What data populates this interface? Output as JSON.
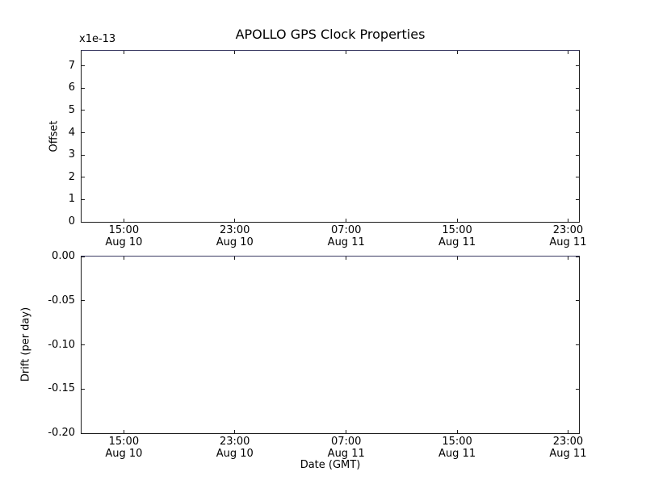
{
  "figure": {
    "background": "#ffffff",
    "plot_background": "#ffffff",
    "spine_color": "#1b1b1b",
    "top_spine_color": "#3b3b63",
    "tick_color": "#1b1b1b",
    "text_color": "#000000"
  },
  "chart_data": [
    {
      "type": "line",
      "title": "APOLLO GPS Clock Properties",
      "ylabel": "Offset",
      "xlabel": "",
      "y_offset_label": "x1e-13",
      "ylim": [
        0,
        7.68
      ],
      "grid": false,
      "legend": null,
      "yticks": [
        {
          "label": "7",
          "value": 7
        },
        {
          "label": "6",
          "value": 6
        },
        {
          "label": "5",
          "value": 5
        },
        {
          "label": "4",
          "value": 4
        },
        {
          "label": "3",
          "value": 3
        },
        {
          "label": "2",
          "value": 2
        },
        {
          "label": "1",
          "value": 1
        },
        {
          "label": "0",
          "value": 0
        }
      ],
      "xticks": [
        {
          "time": "15:00",
          "date": "Aug 10",
          "pos": 0.085
        },
        {
          "time": "23:00",
          "date": "Aug 10",
          "pos": 0.308
        },
        {
          "time": "07:00",
          "date": "Aug 11",
          "pos": 0.532
        },
        {
          "time": "15:00",
          "date": "Aug 11",
          "pos": 0.755
        },
        {
          "time": "23:00",
          "date": "Aug 11",
          "pos": 0.978
        }
      ],
      "series": []
    },
    {
      "type": "line",
      "title": "",
      "ylabel": "Drift (per day)",
      "xlabel": "Date (GMT)",
      "y_offset_label": "",
      "ylim": [
        -0.2,
        0.0
      ],
      "grid": false,
      "legend": null,
      "yticks": [
        {
          "label": "0.00",
          "value": 0.0
        },
        {
          "label": "-0.05",
          "value": -0.05
        },
        {
          "label": "-0.10",
          "value": -0.1
        },
        {
          "label": "-0.15",
          "value": -0.15
        },
        {
          "label": "-0.20",
          "value": -0.2
        }
      ],
      "xticks": [
        {
          "time": "15:00",
          "date": "Aug 10",
          "pos": 0.085
        },
        {
          "time": "23:00",
          "date": "Aug 10",
          "pos": 0.308
        },
        {
          "time": "07:00",
          "date": "Aug 11",
          "pos": 0.532
        },
        {
          "time": "15:00",
          "date": "Aug 11",
          "pos": 0.755
        },
        {
          "time": "23:00",
          "date": "Aug 11",
          "pos": 0.978
        }
      ],
      "series": []
    }
  ]
}
